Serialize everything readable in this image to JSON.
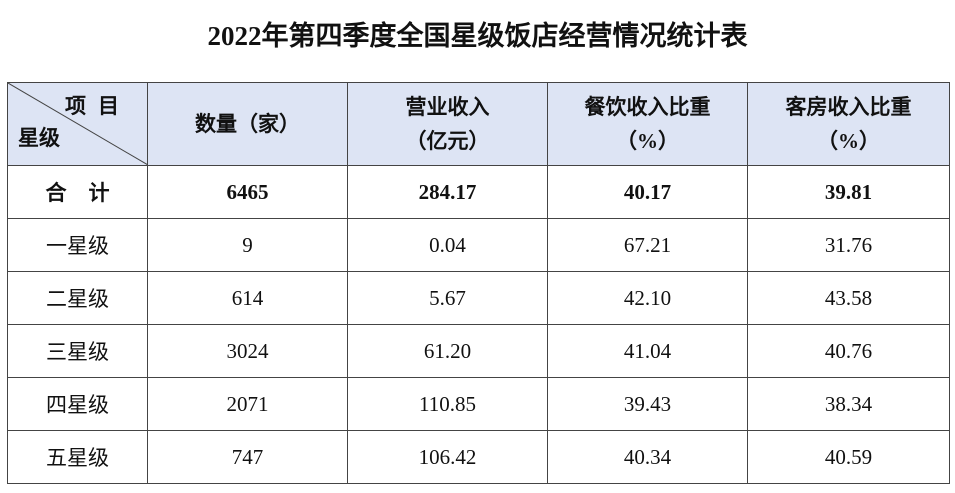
{
  "title": "2022年第四季度全国星级饭店经营情况统计表",
  "table": {
    "corner": {
      "top": "项目",
      "bottom": "星级"
    },
    "columns": [
      [
        "数量（家）"
      ],
      [
        "营业收入",
        "（亿元）"
      ],
      [
        "餐饮收入比重",
        "（%）"
      ],
      [
        "客房收入比重",
        "（%）"
      ]
    ],
    "rows": [
      [
        "合计",
        "6465",
        "284.17",
        "40.17",
        "39.81"
      ],
      [
        "一星级",
        "9",
        "0.04",
        "67.21",
        "31.76"
      ],
      [
        "二星级",
        "614",
        "5.67",
        "42.10",
        "43.58"
      ],
      [
        "三星级",
        "3024",
        "61.20",
        "41.04",
        "40.76"
      ],
      [
        "四星级",
        "2071",
        "110.85",
        "39.43",
        "38.34"
      ],
      [
        "五星级",
        "747",
        "106.42",
        "40.34",
        "40.59"
      ]
    ]
  }
}
